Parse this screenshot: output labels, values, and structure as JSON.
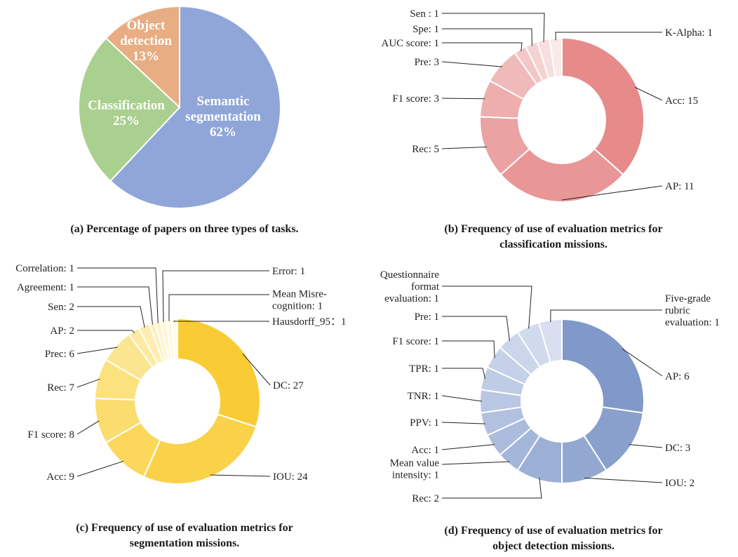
{
  "chart_data": [
    {
      "id": "a",
      "type": "pie",
      "caption": "(a) Percentage of papers on three types of tasks.",
      "slices": [
        {
          "label_lines": [
            "Semantic",
            "segmentation",
            "62%"
          ],
          "value": 62,
          "color": "#90a6d8"
        },
        {
          "label_lines": [
            "Classification",
            "25%"
          ],
          "value": 25,
          "color": "#a9d08e"
        },
        {
          "label_lines": [
            "Object",
            "detection",
            "13%"
          ],
          "value": 13,
          "color": "#e8ad83"
        }
      ]
    },
    {
      "id": "b",
      "type": "donut",
      "caption_lines": [
        "(b) Frequency of use of evaluation metrics for",
        "classification missions."
      ],
      "slices": [
        {
          "label": "Acc:  15",
          "value": 15,
          "color": "#e68a8a"
        },
        {
          "label": "AP:  11",
          "value": 11,
          "color": "#e99696"
        },
        {
          "label": "Rec:  5",
          "value": 5,
          "color": "#eba2a2"
        },
        {
          "label": "F1 score: 3",
          "value": 3,
          "color": "#eeaeae"
        },
        {
          "label": "Pre: 3",
          "value": 3,
          "color": "#f0baba"
        },
        {
          "label": "AUC score: 1",
          "value": 1,
          "color": "#f3c7c7"
        },
        {
          "label": "Spe: 1",
          "value": 1,
          "color": "#f5d3d3"
        },
        {
          "label": "Sen : 1",
          "value": 1,
          "color": "#f8dfdf"
        },
        {
          "label": "K-Alpha:  1",
          "value": 1,
          "color": "#faeaea"
        }
      ]
    },
    {
      "id": "c",
      "type": "donut",
      "caption_lines": [
        "(c) Frequency of use of evaluation metrics for",
        "segmentation missions."
      ],
      "slices": [
        {
          "label": "DC: 27",
          "value": 27,
          "color": "#f9cc36"
        },
        {
          "label": "IOU: 24",
          "value": 24,
          "color": "#fad24a"
        },
        {
          "label": "Acc: 9",
          "value": 9,
          "color": "#fbd75c"
        },
        {
          "label": "F1 score: 8",
          "value": 8,
          "color": "#fbdc6e"
        },
        {
          "label": "Rec: 7",
          "value": 7,
          "color": "#fce17f"
        },
        {
          "label": "Prec: 6",
          "value": 6,
          "color": "#fce590"
        },
        {
          "label": "AP: 2",
          "value": 2,
          "color": "#fde9a0"
        },
        {
          "label": "Sen: 2",
          "value": 2,
          "color": "#fdedb0"
        },
        {
          "label": "Agreement:  1",
          "value": 1,
          "color": "#fef0bf"
        },
        {
          "label": "Correlation:  1",
          "value": 1,
          "color": "#fef3cc"
        },
        {
          "label": "Error: 1",
          "value": 1,
          "color": "#fef6d8"
        },
        {
          "label": "Mean Misre-|cognition: 1",
          "value": 1,
          "color": "#fff8e2"
        },
        {
          "label": "Hausdorff_95：1",
          "value": 1,
          "color": "#fffaea"
        }
      ]
    },
    {
      "id": "d",
      "type": "donut",
      "caption_lines": [
        "(d) Frequency of use of evaluation metrics for",
        "object detection missions."
      ],
      "slices": [
        {
          "label": "AP: 6",
          "value": 6,
          "color": "#8199c8"
        },
        {
          "label": "DC: 3",
          "value": 3,
          "color": "#8aa0cc"
        },
        {
          "label": "IOU: 2",
          "value": 2,
          "color": "#93a8d1"
        },
        {
          "label": "Rec: 2",
          "value": 2,
          "color": "#9cafd5"
        },
        {
          "label": "Mean value|intensity: 1",
          "value": 1,
          "color": "#a4b6d9"
        },
        {
          "label": "Acc:  1",
          "value": 1,
          "color": "#abbcdc"
        },
        {
          "label": "PPV: 1",
          "value": 1,
          "color": "#b2c1df"
        },
        {
          "label": "TNR: 1",
          "value": 1,
          "color": "#b9c7e2"
        },
        {
          "label": "TPR: 1",
          "value": 1,
          "color": "#bfcce5"
        },
        {
          "label": "F1 score: 1",
          "value": 1,
          "color": "#c5d1e8"
        },
        {
          "label": "Pre: 1",
          "value": 1,
          "color": "#cbd6ea"
        },
        {
          "label": "Questionnaire|format|evaluation: 1",
          "value": 1,
          "color": "#d1daed"
        },
        {
          "label": "Five-grade|rubric|evaluation: 1",
          "value": 1,
          "color": "#d7dff0"
        }
      ]
    }
  ]
}
